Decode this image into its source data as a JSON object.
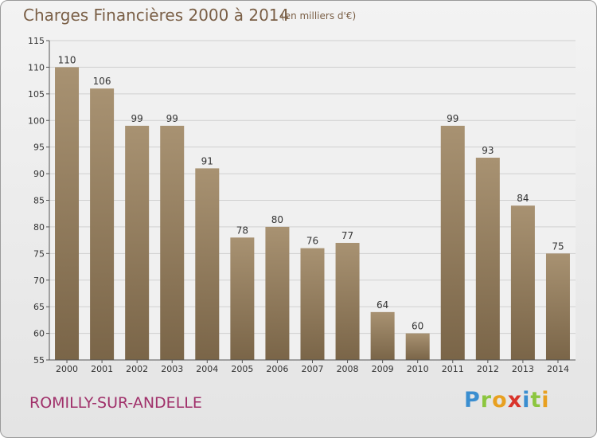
{
  "header": {
    "title": "Charges Financières 2000 à 2014",
    "subtitle": "(en milliers d'€)"
  },
  "footer": {
    "place": "ROMILLY-SUR-ANDELLE",
    "logo_text": "Proxiti"
  },
  "colors": {
    "bar_light": "#a89272",
    "bar_dark": "#7a6548",
    "text_brown": "#7a5f46",
    "place_magenta": "#a0306a"
  },
  "chart_data": {
    "type": "bar",
    "title": "Charges Financières 2000 à 2014",
    "subtitle": "(en milliers d'€)",
    "categories": [
      "2000",
      "2001",
      "2002",
      "2003",
      "2004",
      "2005",
      "2006",
      "2007",
      "2008",
      "2009",
      "2010",
      "2011",
      "2012",
      "2013",
      "2014"
    ],
    "values": [
      110,
      106,
      99,
      99,
      91,
      78,
      80,
      76,
      77,
      64,
      60,
      99,
      93,
      84,
      75
    ],
    "ylim": [
      55,
      115
    ],
    "yticks": [
      55,
      60,
      65,
      70,
      75,
      80,
      85,
      90,
      95,
      100,
      105,
      110,
      115
    ],
    "grid": true,
    "legend": "none"
  }
}
